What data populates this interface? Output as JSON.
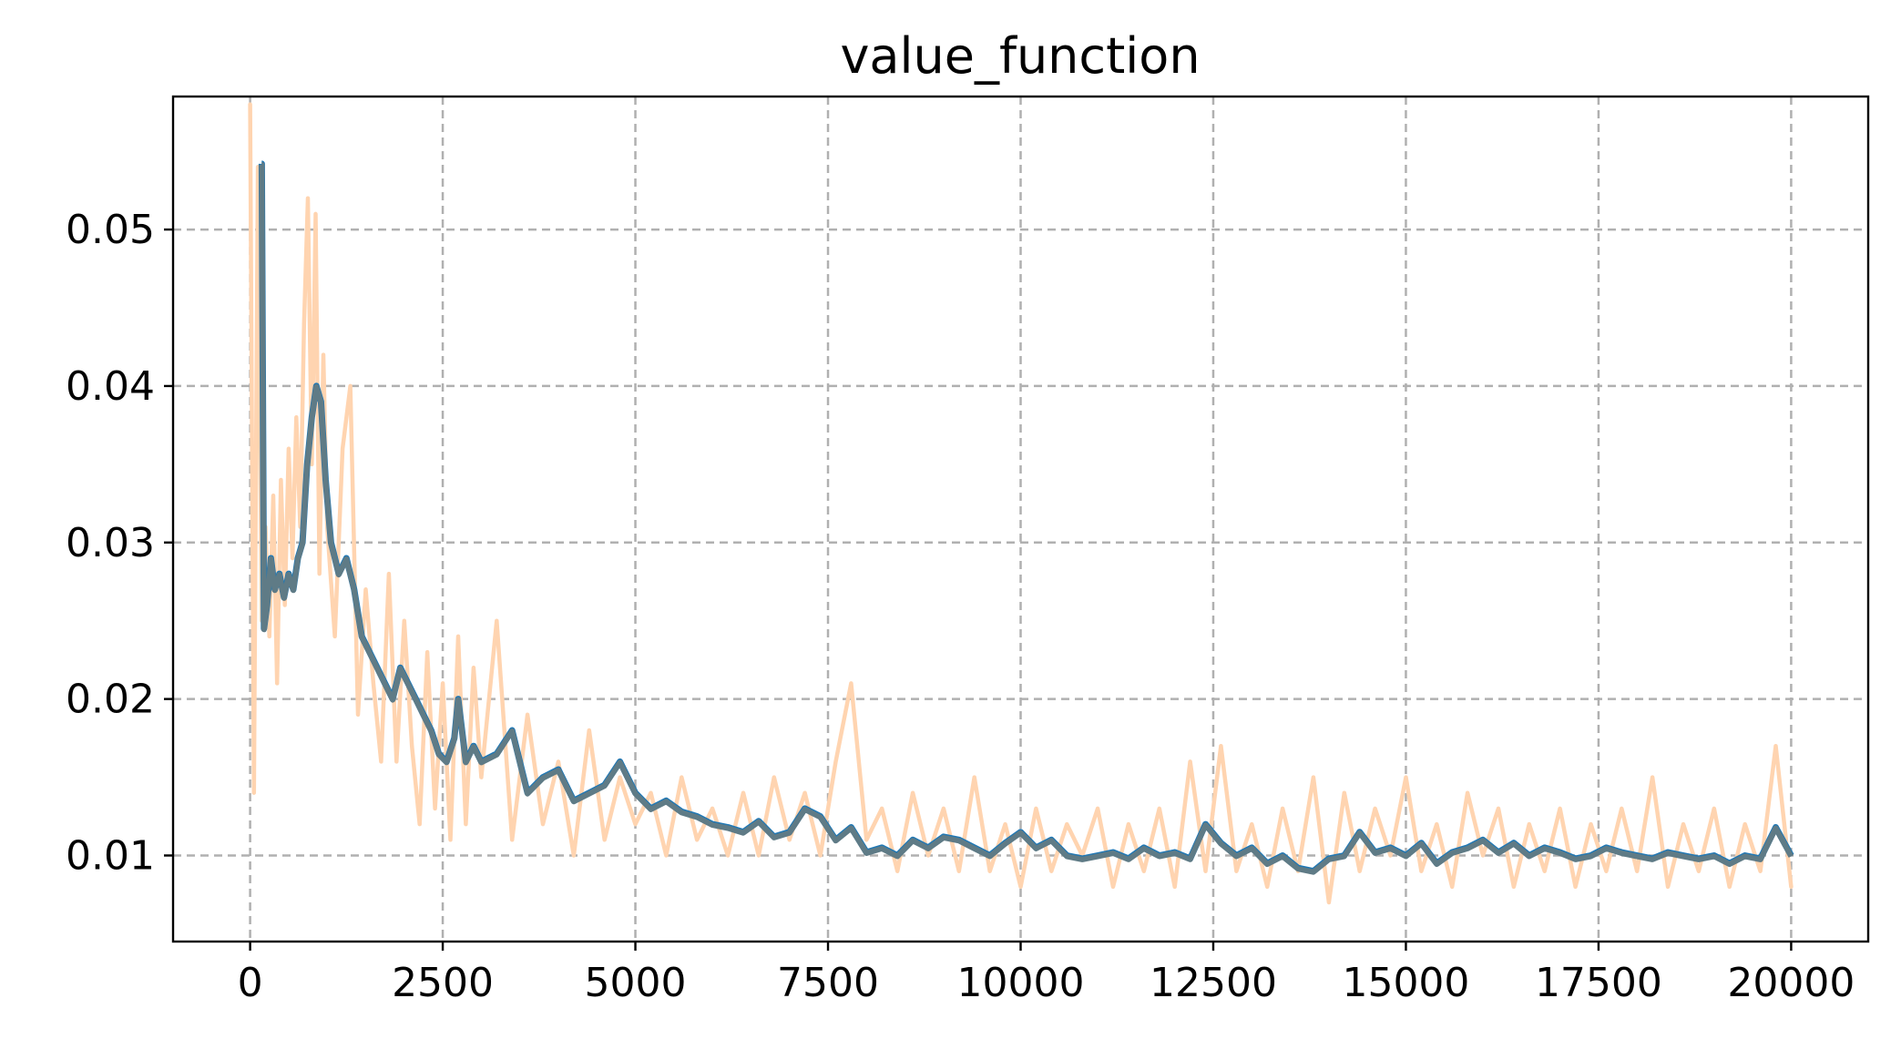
{
  "chart_data": {
    "type": "line",
    "title": "value_function",
    "xlabel": "",
    "ylabel": "",
    "xlim": [
      -1000,
      21000
    ],
    "ylim": [
      0.0045,
      0.0585
    ],
    "xticks": [
      0,
      2500,
      5000,
      7500,
      10000,
      12500,
      15000,
      17500,
      20000
    ],
    "xtick_labels": [
      "0",
      "2500",
      "5000",
      "7500",
      "10000",
      "12500",
      "15000",
      "17500",
      "20000"
    ],
    "yticks": [
      0.01,
      0.02,
      0.03,
      0.04,
      0.05
    ],
    "ytick_labels": [
      "0.01",
      "0.02",
      "0.03",
      "0.04",
      "0.05"
    ],
    "grid": true,
    "colors": {
      "raw": "#ffd4b0",
      "smoothed_blue": "#1f77b4",
      "smoothed_gray": "#5f7b86"
    },
    "series": [
      {
        "role": "raw",
        "x": [
          0,
          50,
          100,
          150,
          200,
          250,
          300,
          350,
          400,
          450,
          500,
          550,
          600,
          650,
          700,
          750,
          800,
          850,
          900,
          950,
          1000,
          1100,
          1200,
          1300,
          1400,
          1500,
          1600,
          1700,
          1800,
          1900,
          2000,
          2100,
          2200,
          2300,
          2400,
          2500,
          2600,
          2700,
          2800,
          2900,
          3000,
          3200,
          3400,
          3600,
          3800,
          4000,
          4200,
          4400,
          4600,
          4800,
          5000,
          5200,
          5400,
          5600,
          5800,
          6000,
          6200,
          6400,
          6600,
          6800,
          7000,
          7200,
          7400,
          7600,
          7800,
          8000,
          8200,
          8400,
          8600,
          8800,
          9000,
          9200,
          9400,
          9600,
          9800,
          10000,
          10200,
          10400,
          10600,
          10800,
          11000,
          11200,
          11400,
          11600,
          11800,
          12000,
          12200,
          12400,
          12600,
          12800,
          13000,
          13200,
          13400,
          13600,
          13800,
          14000,
          14200,
          14400,
          14600,
          14800,
          15000,
          15200,
          15400,
          15600,
          15800,
          16000,
          16200,
          16400,
          16600,
          16800,
          17000,
          17200,
          17400,
          17600,
          17800,
          18000,
          18200,
          18400,
          18600,
          18800,
          19000,
          19200,
          19400,
          19600,
          19800,
          20000
        ],
        "y": [
          0.058,
          0.014,
          0.054,
          0.025,
          0.031,
          0.024,
          0.033,
          0.021,
          0.034,
          0.026,
          0.036,
          0.029,
          0.038,
          0.031,
          0.044,
          0.052,
          0.035,
          0.051,
          0.028,
          0.042,
          0.031,
          0.024,
          0.036,
          0.04,
          0.019,
          0.027,
          0.021,
          0.016,
          0.028,
          0.016,
          0.025,
          0.017,
          0.012,
          0.023,
          0.013,
          0.021,
          0.011,
          0.024,
          0.012,
          0.022,
          0.015,
          0.025,
          0.011,
          0.019,
          0.012,
          0.016,
          0.01,
          0.018,
          0.011,
          0.015,
          0.012,
          0.014,
          0.01,
          0.015,
          0.011,
          0.013,
          0.01,
          0.014,
          0.01,
          0.015,
          0.011,
          0.014,
          0.01,
          0.016,
          0.021,
          0.011,
          0.013,
          0.009,
          0.014,
          0.01,
          0.013,
          0.009,
          0.015,
          0.009,
          0.012,
          0.008,
          0.013,
          0.009,
          0.012,
          0.01,
          0.013,
          0.008,
          0.012,
          0.009,
          0.013,
          0.008,
          0.016,
          0.009,
          0.017,
          0.009,
          0.012,
          0.008,
          0.013,
          0.009,
          0.015,
          0.007,
          0.014,
          0.009,
          0.013,
          0.01,
          0.015,
          0.009,
          0.012,
          0.008,
          0.014,
          0.01,
          0.013,
          0.008,
          0.012,
          0.009,
          0.013,
          0.008,
          0.012,
          0.009,
          0.013,
          0.009,
          0.015,
          0.008,
          0.012,
          0.009,
          0.013,
          0.008,
          0.012,
          0.009,
          0.017,
          0.008
        ]
      },
      {
        "role": "smoothed",
        "x": [
          150,
          151,
          180,
          220,
          270,
          320,
          380,
          440,
          500,
          560,
          620,
          680,
          740,
          800,
          860,
          920,
          980,
          1050,
          1150,
          1250,
          1350,
          1450,
          1550,
          1650,
          1750,
          1850,
          1950,
          2050,
          2150,
          2250,
          2350,
          2450,
          2550,
          2650,
          2700,
          2800,
          2900,
          3000,
          3200,
          3400,
          3600,
          3800,
          4000,
          4200,
          4400,
          4600,
          4800,
          5000,
          5200,
          5400,
          5600,
          5800,
          6000,
          6200,
          6400,
          6600,
          6800,
          7000,
          7200,
          7400,
          7600,
          7800,
          8000,
          8200,
          8400,
          8600,
          8800,
          9000,
          9200,
          9400,
          9600,
          9800,
          10000,
          10200,
          10400,
          10600,
          10800,
          11000,
          11200,
          11400,
          11600,
          11800,
          12000,
          12200,
          12400,
          12600,
          12800,
          13000,
          13200,
          13400,
          13600,
          13800,
          14000,
          14200,
          14400,
          14600,
          14800,
          15000,
          15200,
          15400,
          15600,
          15800,
          16000,
          16200,
          16400,
          16600,
          16800,
          17000,
          17200,
          17400,
          17600,
          17800,
          18000,
          18200,
          18400,
          18600,
          18800,
          19000,
          19200,
          19400,
          19600,
          19800,
          20000
        ],
        "y": [
          0.0542,
          0.0542,
          0.0245,
          0.026,
          0.029,
          0.027,
          0.028,
          0.0265,
          0.028,
          0.027,
          0.029,
          0.03,
          0.035,
          0.038,
          0.04,
          0.039,
          0.034,
          0.03,
          0.028,
          0.029,
          0.027,
          0.024,
          0.023,
          0.022,
          0.021,
          0.02,
          0.022,
          0.021,
          0.02,
          0.019,
          0.018,
          0.0165,
          0.016,
          0.0175,
          0.02,
          0.016,
          0.017,
          0.016,
          0.0165,
          0.018,
          0.014,
          0.015,
          0.0155,
          0.0135,
          0.014,
          0.0145,
          0.016,
          0.014,
          0.013,
          0.0135,
          0.0128,
          0.0125,
          0.012,
          0.0118,
          0.0115,
          0.0122,
          0.0112,
          0.0115,
          0.013,
          0.0125,
          0.011,
          0.0118,
          0.0102,
          0.0105,
          0.01,
          0.011,
          0.0105,
          0.0112,
          0.011,
          0.0105,
          0.01,
          0.0108,
          0.0115,
          0.0105,
          0.011,
          0.01,
          0.0098,
          0.01,
          0.0102,
          0.0098,
          0.0105,
          0.01,
          0.0102,
          0.0098,
          0.012,
          0.0108,
          0.01,
          0.0105,
          0.0095,
          0.01,
          0.0092,
          0.009,
          0.0098,
          0.01,
          0.0115,
          0.0102,
          0.0105,
          0.01,
          0.0108,
          0.0095,
          0.0102,
          0.0105,
          0.011,
          0.0102,
          0.0108,
          0.01,
          0.0105,
          0.0102,
          0.0098,
          0.01,
          0.0105,
          0.0102,
          0.01,
          0.0098,
          0.0102,
          0.01,
          0.0098,
          0.01,
          0.0095,
          0.01,
          0.0098,
          0.0118,
          0.01
        ]
      }
    ]
  }
}
